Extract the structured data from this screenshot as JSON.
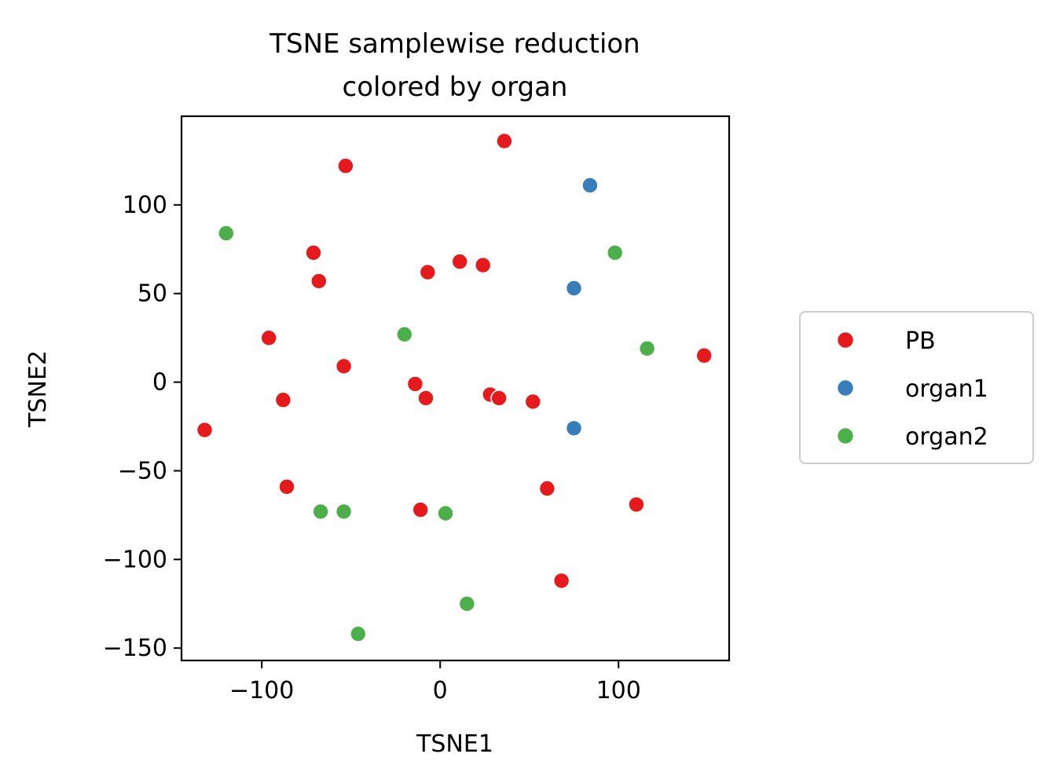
{
  "chart_data": {
    "type": "scatter",
    "title": [
      "TSNE samplewise reduction",
      "colored by organ"
    ],
    "xlabel": "TSNE1",
    "ylabel": "TSNE2",
    "xlim": [
      -145,
      162
    ],
    "ylim": [
      -157,
      150
    ],
    "xticks": [
      {
        "value": -100,
        "label": "−100"
      },
      {
        "value": 0,
        "label": "0"
      },
      {
        "value": 100,
        "label": "100"
      }
    ],
    "yticks": [
      {
        "value": 100,
        "label": "100"
      },
      {
        "value": 50,
        "label": "50"
      },
      {
        "value": 0,
        "label": "0"
      },
      {
        "value": -50,
        "label": "−50"
      },
      {
        "value": -100,
        "label": "−100"
      },
      {
        "value": -150,
        "label": "−150"
      }
    ],
    "grid": false,
    "legend_position": "right",
    "series": [
      {
        "name": "PB",
        "color": "#e41a1c",
        "points": [
          [
            36,
            136
          ],
          [
            -53,
            122
          ],
          [
            -71,
            73
          ],
          [
            -68,
            57
          ],
          [
            -7,
            62
          ],
          [
            11,
            68
          ],
          [
            24,
            66
          ],
          [
            -96,
            25
          ],
          [
            -54,
            9
          ],
          [
            -14,
            -1
          ],
          [
            -8,
            -9
          ],
          [
            28,
            -7
          ],
          [
            33,
            -9
          ],
          [
            52,
            -11
          ],
          [
            -88,
            -10
          ],
          [
            -132,
            -27
          ],
          [
            148,
            15
          ],
          [
            -86,
            -59
          ],
          [
            -11,
            -72
          ],
          [
            60,
            -60
          ],
          [
            110,
            -69
          ],
          [
            68,
            -112
          ]
        ]
      },
      {
        "name": "organ1",
        "color": "#377eb8",
        "points": [
          [
            84,
            111
          ],
          [
            75,
            53
          ],
          [
            75,
            -26
          ]
        ]
      },
      {
        "name": "organ2",
        "color": "#4daf4a",
        "points": [
          [
            -120,
            84
          ],
          [
            98,
            73
          ],
          [
            -20,
            27
          ],
          [
            116,
            19
          ],
          [
            -67,
            -73
          ],
          [
            -54,
            -73
          ],
          [
            3,
            -74
          ],
          [
            15,
            -125
          ],
          [
            -46,
            -142
          ]
        ]
      }
    ]
  }
}
